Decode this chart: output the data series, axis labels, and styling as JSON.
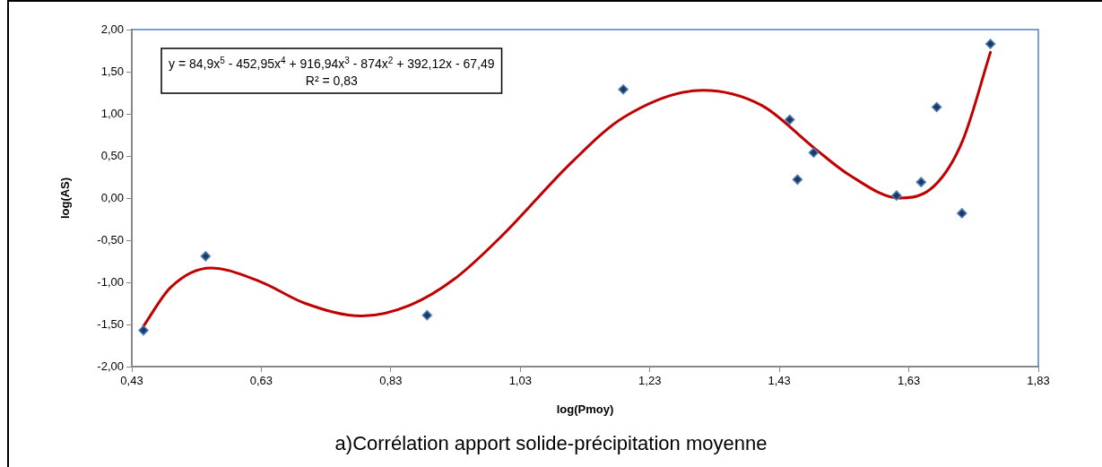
{
  "chart_data": {
    "type": "scatter",
    "xlabel": "log(Pmoy)",
    "ylabel": "log(AS)",
    "xlim": [
      0.43,
      1.83
    ],
    "ylim": [
      -2,
      2
    ],
    "xticks": [
      {
        "value": 0.43,
        "label": "0,43"
      },
      {
        "value": 0.63,
        "label": "0,63"
      },
      {
        "value": 0.83,
        "label": "0,83"
      },
      {
        "value": 1.03,
        "label": "1,03"
      },
      {
        "value": 1.23,
        "label": "1,23"
      },
      {
        "value": 1.43,
        "label": "1,43"
      },
      {
        "value": 1.63,
        "label": "1,63"
      },
      {
        "value": 1.83,
        "label": "1,83"
      }
    ],
    "yticks": [
      {
        "value": -2,
        "label": "-2,00"
      },
      {
        "value": -1.5,
        "label": "-1,50"
      },
      {
        "value": -1,
        "label": "-1,00"
      },
      {
        "value": -0.5,
        "label": "-0,50"
      },
      {
        "value": 0,
        "label": "0,00"
      },
      {
        "value": 0.5,
        "label": "0,50"
      },
      {
        "value": 1,
        "label": "1,00"
      },
      {
        "value": 1.5,
        "label": "1,50"
      },
      {
        "value": 2,
        "label": "2,00"
      }
    ],
    "series": [
      {
        "type": "scatter",
        "marker": "diamond",
        "color": "#1f3864",
        "x": [
          0.448,
          0.544,
          0.886,
          1.189,
          1.446,
          1.458,
          1.483,
          1.611,
          1.649,
          1.673,
          1.712,
          1.756
        ],
        "values": [
          -1.57,
          -0.69,
          -1.39,
          1.29,
          0.93,
          0.22,
          0.54,
          0.03,
          0.19,
          1.08,
          -0.18,
          1.83
        ]
      },
      {
        "type": "line",
        "marker": "none",
        "color": "#c00000",
        "x": [
          0.448,
          0.49,
          0.552,
          0.628,
          0.698,
          0.785,
          0.86,
          0.93,
          1.0,
          1.11,
          1.19,
          1.312,
          1.403,
          1.483,
          1.537,
          1.616,
          1.67,
          1.713,
          1.756
        ],
        "values": [
          -1.52,
          -1.06,
          -0.83,
          -0.99,
          -1.25,
          -1.4,
          -1.27,
          -0.95,
          -0.46,
          0.43,
          0.96,
          1.28,
          1.1,
          0.6,
          0.28,
          0.0,
          0.15,
          0.68,
          1.73
        ]
      }
    ],
    "annotations": [
      "y = 84,9x$^{5}$ - 452,95x$^{4}$ + 916,94x$^{3}$ - 874x$^{2}$ + 392,12x - 67,49",
      "R² = 0,83",
      "a)Corrélation apport solide-précipitation moyenne"
    ]
  }
}
